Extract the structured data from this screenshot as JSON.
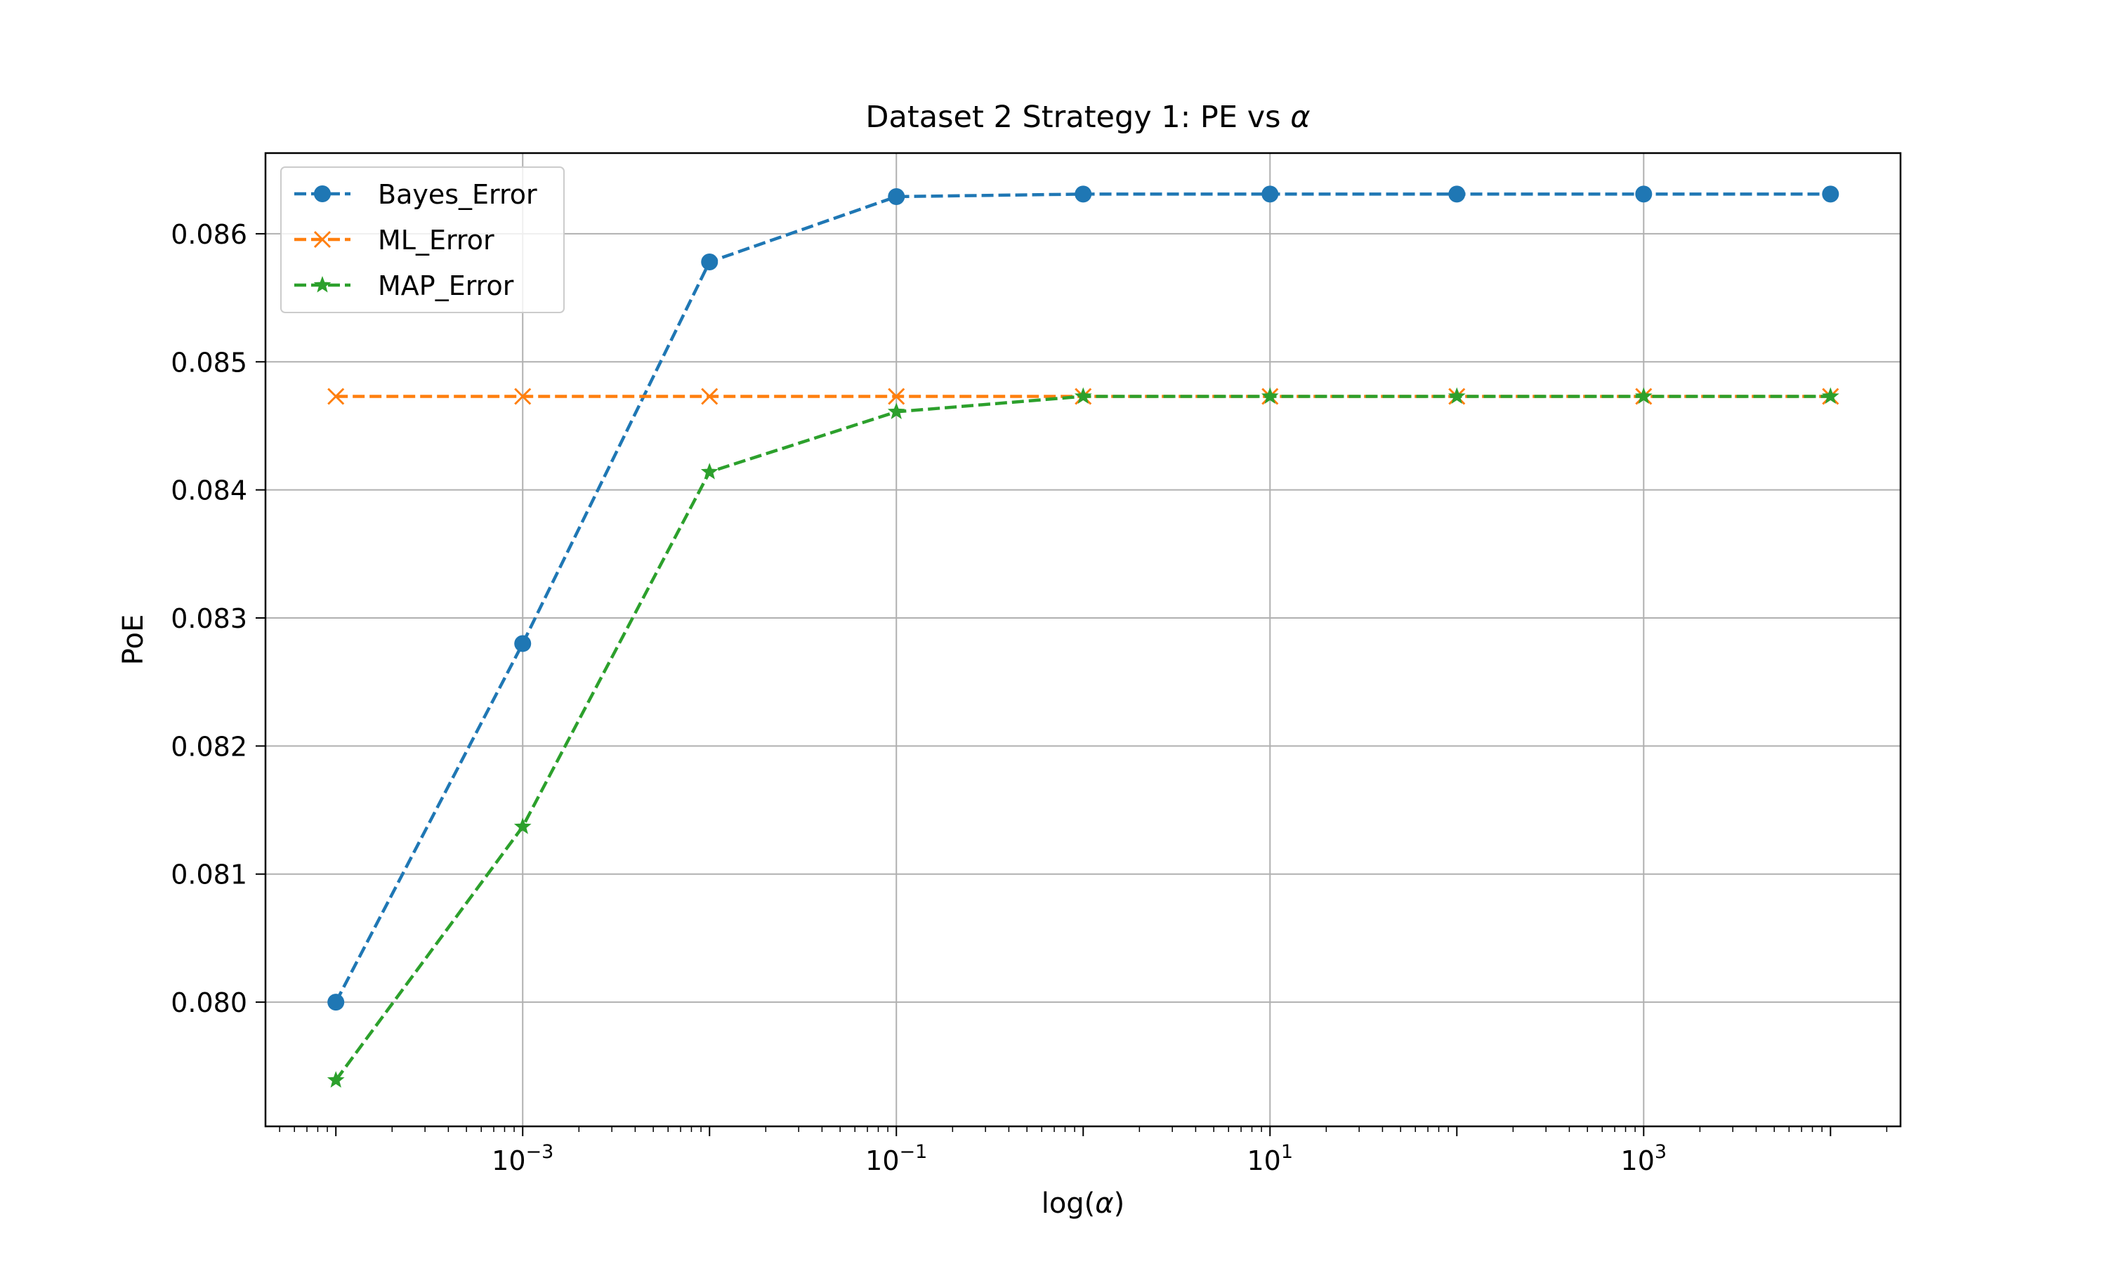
{
  "chart_data": {
    "type": "line",
    "title_prefix": "Dataset 2 Strategy 1: PE vs ",
    "title_symbol": "α",
    "xlabel_prefix": "log(",
    "xlabel_symbol": "α",
    "xlabel_suffix": ")",
    "ylabel": "PoE",
    "xscale": "log",
    "x": [
      0.0001,
      0.001,
      0.01,
      0.1,
      1,
      10,
      100,
      1000,
      10000
    ],
    "x_ticks": [
      {
        "value": 0.001,
        "base": "10",
        "exp": "−3"
      },
      {
        "value": 0.1,
        "base": "10",
        "exp": "−1"
      },
      {
        "value": 10,
        "base": "10",
        "exp": "1"
      },
      {
        "value": 1000,
        "base": "10",
        "exp": "3"
      }
    ],
    "y_ticks": [
      {
        "value": 0.08,
        "label": "0.080"
      },
      {
        "value": 0.081,
        "label": "0.081"
      },
      {
        "value": 0.082,
        "label": "0.082"
      },
      {
        "value": 0.083,
        "label": "0.083"
      },
      {
        "value": 0.084,
        "label": "0.084"
      },
      {
        "value": 0.085,
        "label": "0.085"
      },
      {
        "value": 0.086,
        "label": "0.086"
      }
    ],
    "xlim": [
      4.2e-05,
      23700
    ],
    "ylim": [
      0.07903,
      0.08663
    ],
    "grid": true,
    "legend_position": "top-left",
    "series": [
      {
        "name": "Bayes_Error",
        "color": "#1f77b4",
        "marker": "circle",
        "values": [
          0.08,
          0.0828,
          0.08578,
          0.08629,
          0.08631,
          0.08631,
          0.08631,
          0.08631,
          0.08631
        ]
      },
      {
        "name": "ML_Error",
        "color": "#ff7f0e",
        "marker": "x",
        "values": [
          0.08473,
          0.08473,
          0.08473,
          0.08473,
          0.08473,
          0.08473,
          0.08473,
          0.08473,
          0.08473
        ]
      },
      {
        "name": "MAP_Error",
        "color": "#2ca02c",
        "marker": "star",
        "values": [
          0.07939,
          0.08137,
          0.08414,
          0.08461,
          0.08473,
          0.08473,
          0.08473,
          0.08473,
          0.08473
        ]
      }
    ]
  }
}
